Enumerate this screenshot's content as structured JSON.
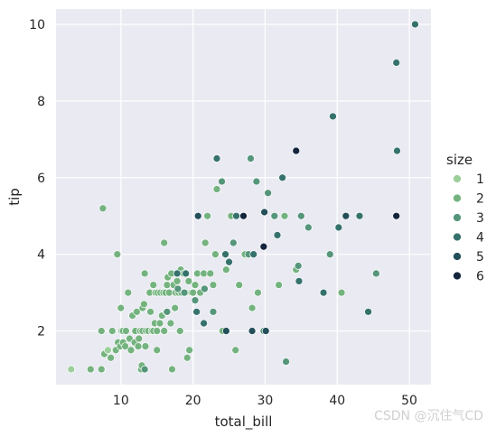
{
  "chart_data": {
    "type": "scatter",
    "xlabel": "total_bill",
    "ylabel": "tip",
    "xlim": [
      1,
      53
    ],
    "ylim": [
      0.6,
      10.4
    ],
    "xticks": [
      10,
      20,
      30,
      40,
      50
    ],
    "yticks": [
      2,
      4,
      6,
      8,
      10
    ],
    "grid": true,
    "legend": {
      "title": "size",
      "placement": "right",
      "entries": [
        {
          "label": "1",
          "color": "#9dcf9b"
        },
        {
          "label": "2",
          "color": "#74b37f"
        },
        {
          "label": "3",
          "color": "#55967b"
        },
        {
          "label": "4",
          "color": "#36726c"
        },
        {
          "label": "5",
          "color": "#234f59"
        },
        {
          "label": "6",
          "color": "#14253b"
        }
      ]
    },
    "hue_var": "size",
    "points": [
      [
        3.1,
        1.0,
        1
      ],
      [
        5.8,
        1.0,
        2
      ],
      [
        7.3,
        1.0,
        2
      ],
      [
        7.5,
        5.2,
        2
      ],
      [
        7.3,
        2.0,
        2
      ],
      [
        7.7,
        1.4,
        2
      ],
      [
        8.2,
        1.5,
        1
      ],
      [
        8.6,
        1.3,
        2
      ],
      [
        8.8,
        2.0,
        2
      ],
      [
        9.3,
        1.5,
        2
      ],
      [
        9.5,
        4.0,
        2
      ],
      [
        9.6,
        1.7,
        2
      ],
      [
        9.9,
        1.6,
        2
      ],
      [
        10.0,
        2.6,
        2
      ],
      [
        10.1,
        2.0,
        2
      ],
      [
        10.3,
        1.7,
        2
      ],
      [
        10.3,
        2.0,
        2
      ],
      [
        10.6,
        1.6,
        2
      ],
      [
        10.7,
        2.0,
        2
      ],
      [
        11.0,
        3.0,
        2
      ],
      [
        11.2,
        1.8,
        2
      ],
      [
        11.4,
        1.5,
        2
      ],
      [
        11.6,
        2.4,
        2
      ],
      [
        11.9,
        1.7,
        2
      ],
      [
        12.0,
        2.0,
        2
      ],
      [
        12.2,
        2.5,
        2
      ],
      [
        12.4,
        1.6,
        2
      ],
      [
        12.5,
        1.8,
        2
      ],
      [
        12.7,
        2.0,
        2
      ],
      [
        12.8,
        1.0,
        2
      ],
      [
        12.9,
        1.1,
        2
      ],
      [
        13.0,
        2.0,
        2
      ],
      [
        13.0,
        2.6,
        2
      ],
      [
        13.2,
        2.7,
        2
      ],
      [
        13.3,
        3.5,
        2
      ],
      [
        13.4,
        1.6,
        2
      ],
      [
        13.5,
        2.0,
        2
      ],
      [
        13.8,
        2.0,
        2
      ],
      [
        14.0,
        3.0,
        2
      ],
      [
        14.1,
        2.5,
        2
      ],
      [
        14.3,
        2.0,
        2
      ],
      [
        14.5,
        2.0,
        2
      ],
      [
        14.5,
        3.2,
        2
      ],
      [
        14.7,
        2.2,
        2
      ],
      [
        14.8,
        3.0,
        2
      ],
      [
        15.0,
        1.5,
        2
      ],
      [
        15.0,
        2.0,
        2
      ],
      [
        15.1,
        3.0,
        2
      ],
      [
        15.4,
        2.2,
        2
      ],
      [
        15.5,
        3.0,
        2
      ],
      [
        15.7,
        2.4,
        2
      ],
      [
        15.9,
        3.0,
        2
      ],
      [
        16.0,
        2.0,
        2
      ],
      [
        16.0,
        4.3,
        2
      ],
      [
        16.2,
        3.0,
        2
      ],
      [
        16.3,
        2.5,
        2
      ],
      [
        16.4,
        3.2,
        2
      ],
      [
        16.5,
        3.4,
        2
      ],
      [
        16.7,
        3.0,
        2
      ],
      [
        16.9,
        2.2,
        2
      ],
      [
        17.0,
        3.5,
        2
      ],
      [
        17.1,
        1.0,
        2
      ],
      [
        17.3,
        3.2,
        2
      ],
      [
        17.5,
        2.6,
        2
      ],
      [
        17.6,
        3.0,
        2
      ],
      [
        17.8,
        3.3,
        2
      ],
      [
        18.0,
        3.0,
        2
      ],
      [
        18.2,
        2.0,
        2
      ],
      [
        18.3,
        3.6,
        2
      ],
      [
        18.4,
        3.0,
        2
      ],
      [
        18.7,
        3.5,
        2
      ],
      [
        19.0,
        3.0,
        2
      ],
      [
        19.2,
        1.3,
        2
      ],
      [
        19.4,
        3.3,
        2
      ],
      [
        19.5,
        1.5,
        2
      ],
      [
        19.8,
        3.0,
        2
      ],
      [
        20.0,
        3.0,
        2
      ],
      [
        20.3,
        3.2,
        2
      ],
      [
        20.6,
        3.5,
        2
      ],
      [
        21.0,
        3.0,
        2
      ],
      [
        21.5,
        3.5,
        2
      ],
      [
        21.7,
        4.3,
        2
      ],
      [
        22.0,
        5.0,
        2
      ],
      [
        22.4,
        3.5,
        2
      ],
      [
        22.8,
        3.2,
        2
      ],
      [
        23.1,
        4.0,
        2
      ],
      [
        23.3,
        5.7,
        2
      ],
      [
        24.1,
        2.0,
        2
      ],
      [
        24.6,
        3.6,
        2
      ],
      [
        25.3,
        5.0,
        2
      ],
      [
        25.9,
        1.5,
        2
      ],
      [
        26.4,
        3.2,
        2
      ],
      [
        27.2,
        4.0,
        2
      ],
      [
        28.2,
        2.6,
        2
      ],
      [
        29.0,
        3.0,
        2
      ],
      [
        30.1,
        2.0,
        2
      ],
      [
        31.9,
        3.2,
        2
      ],
      [
        32.7,
        5.0,
        2
      ],
      [
        34.3,
        3.6,
        2
      ],
      [
        38.0,
        3.0,
        2
      ],
      [
        40.6,
        3.0,
        2
      ],
      [
        13.3,
        1.0,
        3
      ],
      [
        16.4,
        2.5,
        3
      ],
      [
        17.9,
        3.1,
        3
      ],
      [
        18.8,
        3.0,
        3
      ],
      [
        20.3,
        2.8,
        3
      ],
      [
        21.6,
        3.1,
        3
      ],
      [
        22.8,
        2.5,
        3
      ],
      [
        24.0,
        5.9,
        3
      ],
      [
        25.6,
        4.3,
        3
      ],
      [
        27.7,
        4.0,
        3
      ],
      [
        28.0,
        6.5,
        3
      ],
      [
        28.8,
        5.9,
        3
      ],
      [
        29.8,
        2.0,
        3
      ],
      [
        30.4,
        5.6,
        3
      ],
      [
        31.3,
        5.0,
        3
      ],
      [
        32.9,
        1.2,
        3
      ],
      [
        34.6,
        3.7,
        3
      ],
      [
        35.0,
        5.0,
        3
      ],
      [
        36.0,
        4.7,
        3
      ],
      [
        39.0,
        4.0,
        3
      ],
      [
        45.4,
        3.5,
        3
      ],
      [
        17.8,
        3.5,
        4
      ],
      [
        19.0,
        3.5,
        4
      ],
      [
        20.5,
        2.5,
        4
      ],
      [
        21.5,
        2.2,
        4
      ],
      [
        23.3,
        6.5,
        4
      ],
      [
        24.5,
        4.0,
        4
      ],
      [
        25.0,
        3.8,
        4
      ],
      [
        26.0,
        5.0,
        4
      ],
      [
        28.4,
        4.0,
        4
      ],
      [
        31.7,
        4.5,
        4
      ],
      [
        32.4,
        6.0,
        4
      ],
      [
        34.7,
        3.3,
        4
      ],
      [
        38.1,
        3.0,
        4
      ],
      [
        39.4,
        7.6,
        4
      ],
      [
        40.2,
        4.7,
        4
      ],
      [
        43.1,
        5.0,
        4
      ],
      [
        44.3,
        2.5,
        4
      ],
      [
        48.2,
        9.0,
        4
      ],
      [
        48.3,
        6.7,
        4
      ],
      [
        50.8,
        10.0,
        4
      ],
      [
        20.7,
        5.0,
        5
      ],
      [
        24.6,
        2.0,
        5
      ],
      [
        28.2,
        2.0,
        5
      ],
      [
        29.9,
        5.1,
        5
      ],
      [
        30.1,
        2.0,
        5
      ],
      [
        41.2,
        5.0,
        5
      ],
      [
        27.0,
        5.0,
        6
      ],
      [
        29.8,
        4.2,
        6
      ],
      [
        34.3,
        6.7,
        6
      ],
      [
        48.2,
        5.0,
        6
      ]
    ]
  },
  "watermark": "CSDN @沉住气CD"
}
